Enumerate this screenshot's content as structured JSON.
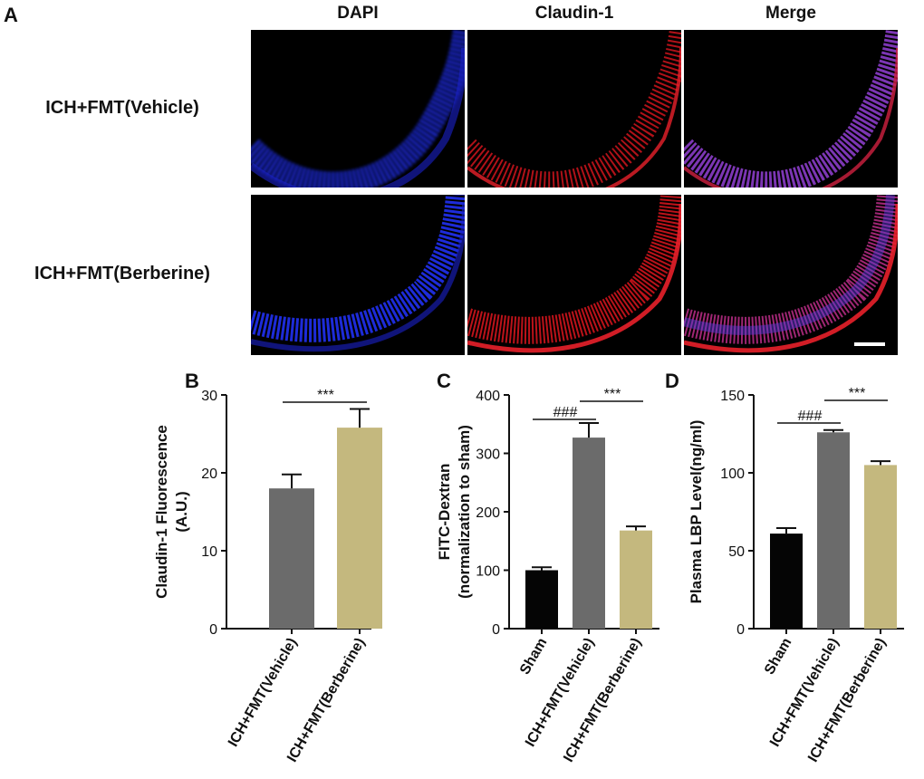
{
  "panel_a": {
    "letter": "A",
    "columns": [
      "DAPI",
      "Claudin-1",
      "Merge"
    ],
    "rows": [
      "ICH+FMT(Vehicle)",
      "ICH+FMT(Berberine)"
    ]
  },
  "colors": {
    "sham": "#050505",
    "vehicle": "#6b6b6b",
    "berberine": "#c4b87e",
    "dapi": "#2233ff",
    "claudin": "#e0141e",
    "merge": "#8a3cc8"
  },
  "chart_data": [
    {
      "panel": "B",
      "type": "bar",
      "title": "",
      "ylabel": [
        "Claudin-1 Fluorescence",
        "(A.U.)"
      ],
      "categories": [
        "ICH+FMT(Vehicle)",
        "ICH+FMT(Berberine)"
      ],
      "values": [
        18.0,
        25.8
      ],
      "errors": [
        1.8,
        2.4
      ],
      "bar_colors": [
        "#6b6b6b",
        "#c4b87e"
      ],
      "ylim": [
        0,
        30
      ],
      "yticks": [
        0,
        10,
        20,
        30
      ],
      "significance": [
        {
          "from": 0,
          "to": 1,
          "label": "***"
        }
      ]
    },
    {
      "panel": "C",
      "type": "bar",
      "title": "",
      "ylabel": [
        "FITC-Dextran",
        "(normalization to sham)"
      ],
      "categories": [
        "Sham",
        "ICH+FMT(Vehicle)",
        "ICH+FMT(Berberine)"
      ],
      "values": [
        100,
        327,
        168
      ],
      "errors": [
        5,
        25,
        7
      ],
      "bar_colors": [
        "#050505",
        "#6b6b6b",
        "#c4b87e"
      ],
      "ylim": [
        0,
        400
      ],
      "yticks": [
        0,
        100,
        200,
        300,
        400
      ],
      "significance": [
        {
          "from": 0,
          "to": 1,
          "label": "###"
        },
        {
          "from": 1,
          "to": 2,
          "label": "***"
        }
      ]
    },
    {
      "panel": "D",
      "type": "bar",
      "title": "",
      "ylabel": [
        "Plasma LBP Level(ng/ml)"
      ],
      "categories": [
        "Sham",
        "ICH+FMT(Vehicle)",
        "ICH+FMT(Berberine)"
      ],
      "values": [
        61,
        126,
        105
      ],
      "errors": [
        3.5,
        1.5,
        2.5
      ],
      "bar_colors": [
        "#050505",
        "#6b6b6b",
        "#c4b87e"
      ],
      "ylim": [
        0,
        150
      ],
      "yticks": [
        0,
        50,
        100,
        150
      ],
      "significance": [
        {
          "from": 0,
          "to": 1,
          "label": "###"
        },
        {
          "from": 1,
          "to": 2,
          "label": "***"
        }
      ]
    }
  ]
}
